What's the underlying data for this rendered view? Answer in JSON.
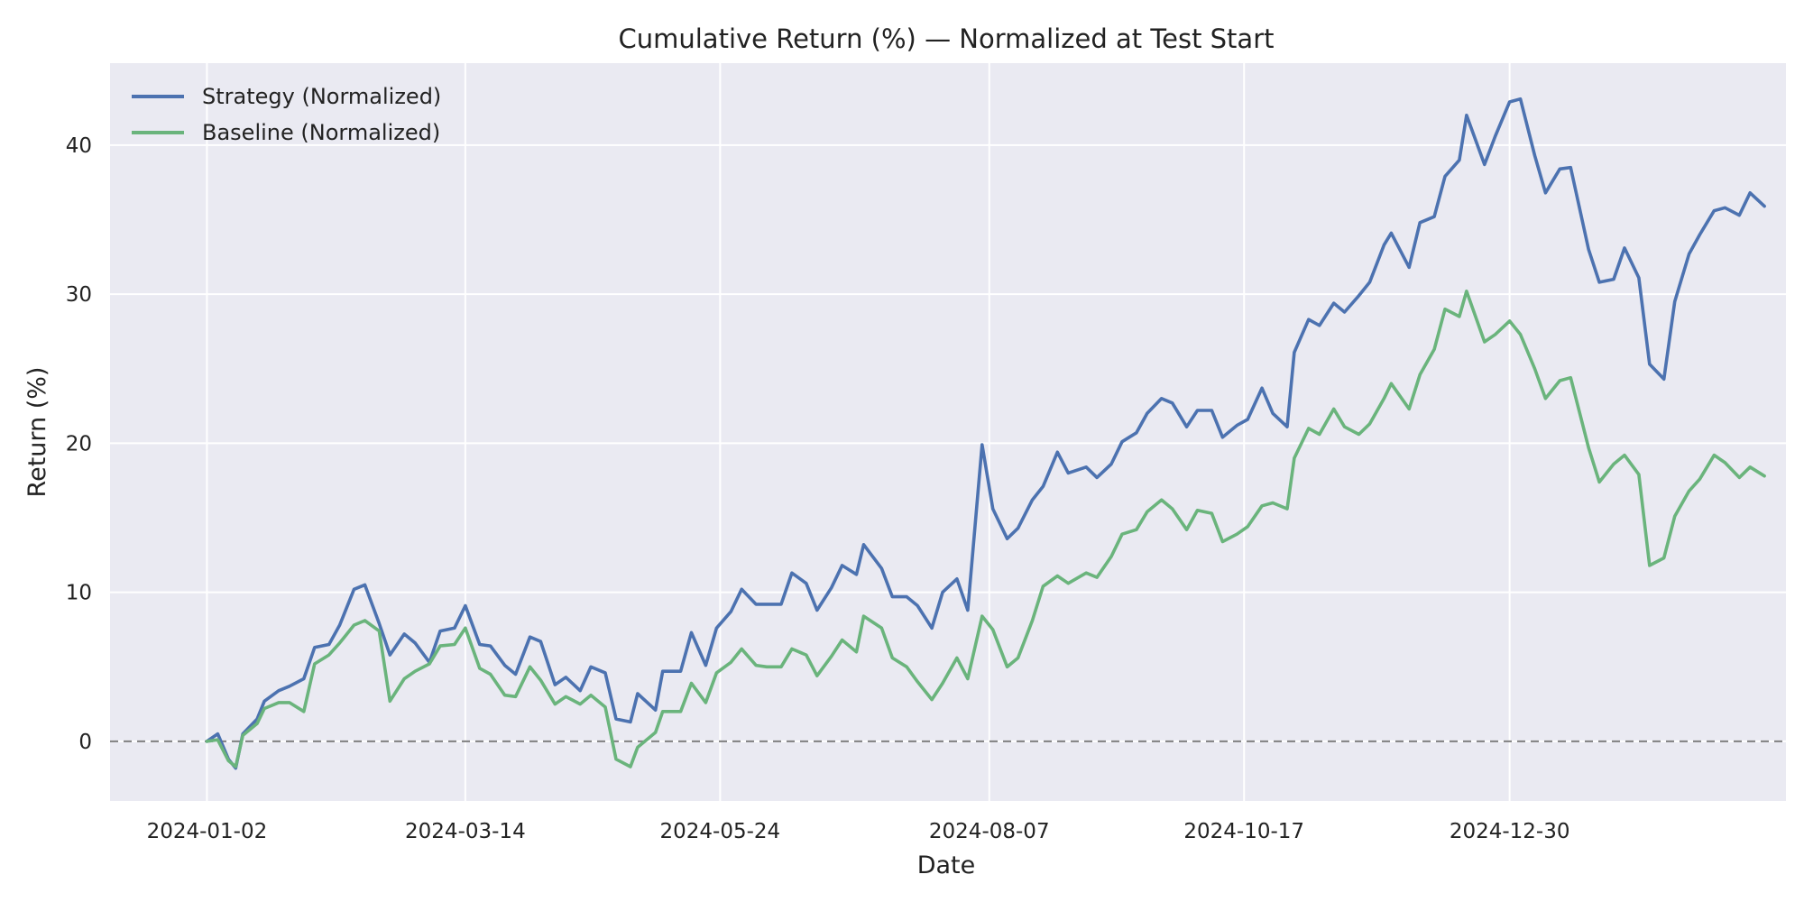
{
  "chart_data": {
    "type": "line",
    "title": "Cumulative Return (%) — Normalized at Test Start",
    "xlabel": "Date",
    "ylabel": "Return (%)",
    "x_range": [
      "2023-12-06",
      "2025-03-17"
    ],
    "xticks": [
      "2024-01-02",
      "2024-03-14",
      "2024-05-24",
      "2024-08-07",
      "2024-10-17",
      "2024-12-30"
    ],
    "ylim": [
      -4,
      45.5
    ],
    "yticks": [
      0,
      10,
      20,
      30,
      40
    ],
    "grid": true,
    "legend_position": "top-left",
    "reference_line": {
      "y": 0,
      "style": "dashed",
      "color": "#808080"
    },
    "colors": {
      "background": "#eaeaf2",
      "grid": "#ffffff",
      "strategy": "#4c72b0",
      "baseline": "#6ab47c"
    },
    "series": [
      {
        "name": "Strategy (Normalized)",
        "color": "#4c72b0",
        "points": [
          [
            "2024-01-02",
            0
          ],
          [
            "2024-01-05",
            0.5
          ],
          [
            "2024-01-08",
            -1.2
          ],
          [
            "2024-01-10",
            -1.8
          ],
          [
            "2024-01-12",
            0.5
          ],
          [
            "2024-01-16",
            1.5
          ],
          [
            "2024-01-18",
            2.7
          ],
          [
            "2024-01-22",
            3.4
          ],
          [
            "2024-01-25",
            3.7
          ],
          [
            "2024-01-29",
            4.2
          ],
          [
            "2024-02-01",
            6.3
          ],
          [
            "2024-02-05",
            6.5
          ],
          [
            "2024-02-08",
            7.8
          ],
          [
            "2024-02-12",
            10.2
          ],
          [
            "2024-02-15",
            10.5
          ],
          [
            "2024-02-19",
            7.9
          ],
          [
            "2024-02-22",
            5.8
          ],
          [
            "2024-02-26",
            7.2
          ],
          [
            "2024-02-29",
            6.6
          ],
          [
            "2024-03-04",
            5.3
          ],
          [
            "2024-03-07",
            7.4
          ],
          [
            "2024-03-11",
            7.6
          ],
          [
            "2024-03-14",
            9.1
          ],
          [
            "2024-03-18",
            6.5
          ],
          [
            "2024-03-21",
            6.4
          ],
          [
            "2024-03-25",
            5.1
          ],
          [
            "2024-03-28",
            4.5
          ],
          [
            "2024-04-01",
            7.0
          ],
          [
            "2024-04-04",
            6.7
          ],
          [
            "2024-04-08",
            3.8
          ],
          [
            "2024-04-11",
            4.3
          ],
          [
            "2024-04-15",
            3.4
          ],
          [
            "2024-04-18",
            5.0
          ],
          [
            "2024-04-22",
            4.6
          ],
          [
            "2024-04-25",
            1.5
          ],
          [
            "2024-04-29",
            1.3
          ],
          [
            "2024-05-01",
            3.2
          ],
          [
            "2024-05-06",
            2.1
          ],
          [
            "2024-05-08",
            4.7
          ],
          [
            "2024-05-13",
            4.7
          ],
          [
            "2024-05-16",
            7.3
          ],
          [
            "2024-05-20",
            5.1
          ],
          [
            "2024-05-23",
            7.6
          ],
          [
            "2024-05-27",
            8.7
          ],
          [
            "2024-05-30",
            10.2
          ],
          [
            "2024-06-03",
            9.2
          ],
          [
            "2024-06-06",
            9.2
          ],
          [
            "2024-06-10",
            9.2
          ],
          [
            "2024-06-13",
            11.3
          ],
          [
            "2024-06-17",
            10.6
          ],
          [
            "2024-06-20",
            8.8
          ],
          [
            "2024-06-24",
            10.3
          ],
          [
            "2024-06-27",
            11.8
          ],
          [
            "2024-07-01",
            11.2
          ],
          [
            "2024-07-03",
            13.2
          ],
          [
            "2024-07-08",
            11.6
          ],
          [
            "2024-07-11",
            9.7
          ],
          [
            "2024-07-15",
            9.7
          ],
          [
            "2024-07-18",
            9.1
          ],
          [
            "2024-07-22",
            7.6
          ],
          [
            "2024-07-25",
            10.0
          ],
          [
            "2024-07-29",
            10.9
          ],
          [
            "2024-08-01",
            8.8
          ],
          [
            "2024-08-05",
            19.9
          ],
          [
            "2024-08-08",
            15.6
          ],
          [
            "2024-08-12",
            13.6
          ],
          [
            "2024-08-15",
            14.3
          ],
          [
            "2024-08-19",
            16.2
          ],
          [
            "2024-08-22",
            17.1
          ],
          [
            "2024-08-26",
            19.4
          ],
          [
            "2024-08-29",
            18.0
          ],
          [
            "2024-09-03",
            18.4
          ],
          [
            "2024-09-06",
            17.7
          ],
          [
            "2024-09-10",
            18.6
          ],
          [
            "2024-09-13",
            20.1
          ],
          [
            "2024-09-17",
            20.7
          ],
          [
            "2024-09-20",
            22.0
          ],
          [
            "2024-09-24",
            23.0
          ],
          [
            "2024-09-27",
            22.7
          ],
          [
            "2024-10-01",
            21.1
          ],
          [
            "2024-10-04",
            22.2
          ],
          [
            "2024-10-08",
            22.2
          ],
          [
            "2024-10-11",
            20.4
          ],
          [
            "2024-10-15",
            21.2
          ],
          [
            "2024-10-18",
            21.6
          ],
          [
            "2024-10-22",
            23.7
          ],
          [
            "2024-10-25",
            22.0
          ],
          [
            "2024-10-29",
            21.1
          ],
          [
            "2024-10-31",
            26.1
          ],
          [
            "2024-11-04",
            28.3
          ],
          [
            "2024-11-07",
            27.9
          ],
          [
            "2024-11-11",
            29.4
          ],
          [
            "2024-11-14",
            28.8
          ],
          [
            "2024-11-18",
            29.9
          ],
          [
            "2024-11-21",
            30.8
          ],
          [
            "2024-11-25",
            33.3
          ],
          [
            "2024-11-27",
            34.1
          ],
          [
            "2024-12-02",
            31.8
          ],
          [
            "2024-12-05",
            34.8
          ],
          [
            "2024-12-09",
            35.2
          ],
          [
            "2024-12-12",
            37.9
          ],
          [
            "2024-12-16",
            39.0
          ],
          [
            "2024-12-18",
            42.0
          ],
          [
            "2024-12-23",
            38.7
          ],
          [
            "2024-12-26",
            40.6
          ],
          [
            "2024-12-30",
            42.9
          ],
          [
            "2025-01-02",
            43.1
          ],
          [
            "2025-01-06",
            39.3
          ],
          [
            "2025-01-09",
            36.8
          ],
          [
            "2025-01-13",
            38.4
          ],
          [
            "2025-01-16",
            38.5
          ],
          [
            "2025-01-21",
            33.0
          ],
          [
            "2025-01-24",
            30.8
          ],
          [
            "2025-01-28",
            31.0
          ],
          [
            "2025-01-31",
            33.1
          ],
          [
            "2025-02-04",
            31.1
          ],
          [
            "2025-02-07",
            25.3
          ],
          [
            "2025-02-11",
            24.3
          ],
          [
            "2025-02-14",
            29.5
          ],
          [
            "2025-02-18",
            32.7
          ],
          [
            "2025-02-21",
            34.0
          ],
          [
            "2025-02-25",
            35.6
          ],
          [
            "2025-02-28",
            35.8
          ],
          [
            "2025-03-04",
            35.3
          ],
          [
            "2025-03-07",
            36.8
          ],
          [
            "2025-03-11",
            35.9
          ]
        ]
      },
      {
        "name": "Baseline (Normalized)",
        "color": "#6ab47c",
        "points": [
          [
            "2024-01-02",
            0
          ],
          [
            "2024-01-05",
            0.1
          ],
          [
            "2024-01-08",
            -1.3
          ],
          [
            "2024-01-10",
            -1.7
          ],
          [
            "2024-01-12",
            0.4
          ],
          [
            "2024-01-16",
            1.2
          ],
          [
            "2024-01-18",
            2.2
          ],
          [
            "2024-01-22",
            2.6
          ],
          [
            "2024-01-25",
            2.6
          ],
          [
            "2024-01-29",
            2.0
          ],
          [
            "2024-02-01",
            5.2
          ],
          [
            "2024-02-05",
            5.8
          ],
          [
            "2024-02-08",
            6.6
          ],
          [
            "2024-02-12",
            7.8
          ],
          [
            "2024-02-15",
            8.1
          ],
          [
            "2024-02-19",
            7.4
          ],
          [
            "2024-02-22",
            2.7
          ],
          [
            "2024-02-26",
            4.2
          ],
          [
            "2024-02-29",
            4.7
          ],
          [
            "2024-03-04",
            5.2
          ],
          [
            "2024-03-07",
            6.4
          ],
          [
            "2024-03-11",
            6.5
          ],
          [
            "2024-03-14",
            7.6
          ],
          [
            "2024-03-18",
            4.9
          ],
          [
            "2024-03-21",
            4.5
          ],
          [
            "2024-03-25",
            3.1
          ],
          [
            "2024-03-28",
            3.0
          ],
          [
            "2024-04-01",
            5.0
          ],
          [
            "2024-04-04",
            4.1
          ],
          [
            "2024-04-08",
            2.5
          ],
          [
            "2024-04-11",
            3.0
          ],
          [
            "2024-04-15",
            2.5
          ],
          [
            "2024-04-18",
            3.1
          ],
          [
            "2024-04-22",
            2.3
          ],
          [
            "2024-04-25",
            -1.2
          ],
          [
            "2024-04-29",
            -1.7
          ],
          [
            "2024-05-01",
            -0.4
          ],
          [
            "2024-05-06",
            0.6
          ],
          [
            "2024-05-08",
            2.0
          ],
          [
            "2024-05-13",
            2.0
          ],
          [
            "2024-05-16",
            3.9
          ],
          [
            "2024-05-20",
            2.6
          ],
          [
            "2024-05-23",
            4.6
          ],
          [
            "2024-05-27",
            5.3
          ],
          [
            "2024-05-30",
            6.2
          ],
          [
            "2024-06-03",
            5.1
          ],
          [
            "2024-06-06",
            5.0
          ],
          [
            "2024-06-10",
            5.0
          ],
          [
            "2024-06-13",
            6.2
          ],
          [
            "2024-06-17",
            5.8
          ],
          [
            "2024-06-20",
            4.4
          ],
          [
            "2024-06-24",
            5.7
          ],
          [
            "2024-06-27",
            6.8
          ],
          [
            "2024-07-01",
            6.0
          ],
          [
            "2024-07-03",
            8.4
          ],
          [
            "2024-07-08",
            7.6
          ],
          [
            "2024-07-11",
            5.6
          ],
          [
            "2024-07-15",
            5.0
          ],
          [
            "2024-07-18",
            4.0
          ],
          [
            "2024-07-22",
            2.8
          ],
          [
            "2024-07-25",
            3.9
          ],
          [
            "2024-07-29",
            5.6
          ],
          [
            "2024-08-01",
            4.2
          ],
          [
            "2024-08-05",
            8.4
          ],
          [
            "2024-08-08",
            7.5
          ],
          [
            "2024-08-12",
            5.0
          ],
          [
            "2024-08-15",
            5.6
          ],
          [
            "2024-08-19",
            8.1
          ],
          [
            "2024-08-22",
            10.4
          ],
          [
            "2024-08-26",
            11.1
          ],
          [
            "2024-08-29",
            10.6
          ],
          [
            "2024-09-03",
            11.3
          ],
          [
            "2024-09-06",
            11.0
          ],
          [
            "2024-09-10",
            12.4
          ],
          [
            "2024-09-13",
            13.9
          ],
          [
            "2024-09-17",
            14.2
          ],
          [
            "2024-09-20",
            15.4
          ],
          [
            "2024-09-24",
            16.2
          ],
          [
            "2024-09-27",
            15.6
          ],
          [
            "2024-10-01",
            14.2
          ],
          [
            "2024-10-04",
            15.5
          ],
          [
            "2024-10-08",
            15.3
          ],
          [
            "2024-10-11",
            13.4
          ],
          [
            "2024-10-15",
            13.9
          ],
          [
            "2024-10-18",
            14.4
          ],
          [
            "2024-10-22",
            15.8
          ],
          [
            "2024-10-25",
            16.0
          ],
          [
            "2024-10-29",
            15.6
          ],
          [
            "2024-10-31",
            19.0
          ],
          [
            "2024-11-04",
            21.0
          ],
          [
            "2024-11-07",
            20.6
          ],
          [
            "2024-11-11",
            22.3
          ],
          [
            "2024-11-14",
            21.1
          ],
          [
            "2024-11-18",
            20.6
          ],
          [
            "2024-11-21",
            21.3
          ],
          [
            "2024-11-25",
            23.0
          ],
          [
            "2024-11-27",
            24.0
          ],
          [
            "2024-12-02",
            22.3
          ],
          [
            "2024-12-05",
            24.6
          ],
          [
            "2024-12-09",
            26.3
          ],
          [
            "2024-12-12",
            29.0
          ],
          [
            "2024-12-16",
            28.5
          ],
          [
            "2024-12-18",
            30.2
          ],
          [
            "2024-12-23",
            26.8
          ],
          [
            "2024-12-26",
            27.3
          ],
          [
            "2024-12-30",
            28.2
          ],
          [
            "2025-01-02",
            27.3
          ],
          [
            "2025-01-06",
            25.0
          ],
          [
            "2025-01-09",
            23.0
          ],
          [
            "2025-01-13",
            24.2
          ],
          [
            "2025-01-16",
            24.4
          ],
          [
            "2025-01-21",
            19.7
          ],
          [
            "2025-01-24",
            17.4
          ],
          [
            "2025-01-28",
            18.6
          ],
          [
            "2025-01-31",
            19.2
          ],
          [
            "2025-02-04",
            17.9
          ],
          [
            "2025-02-07",
            11.8
          ],
          [
            "2025-02-11",
            12.3
          ],
          [
            "2025-02-14",
            15.1
          ],
          [
            "2025-02-18",
            16.8
          ],
          [
            "2025-02-21",
            17.6
          ],
          [
            "2025-02-25",
            19.2
          ],
          [
            "2025-02-28",
            18.7
          ],
          [
            "2025-03-04",
            17.7
          ],
          [
            "2025-03-07",
            18.4
          ],
          [
            "2025-03-11",
            17.8
          ]
        ]
      }
    ]
  }
}
